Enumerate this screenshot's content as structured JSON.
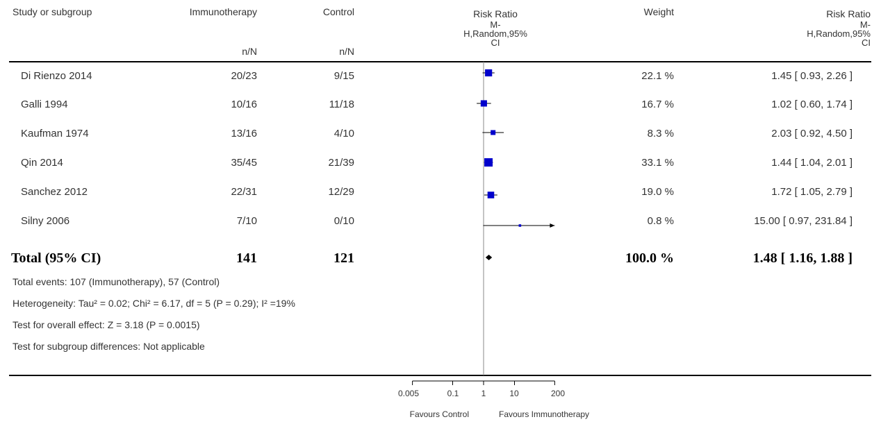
{
  "header": {
    "study": "Study or subgroup",
    "exp": "Immunotherapy",
    "ctl": "Control",
    "exp_sub": "n/N",
    "ctl_sub": "n/N",
    "rr_title": "Risk Ratio",
    "rr_l1": "M-",
    "rr_l2": "H,Random,95%",
    "rr_l3": "CI",
    "weight": "Weight",
    "rr2_title": "Risk Ratio",
    "rr2_l1": "M-",
    "rr2_l2": "H,Random,95%",
    "rr2_l3": "CI"
  },
  "rows": [
    {
      "study": "Di Rienzo 2014",
      "exp": "20/23",
      "ctl": "9/15",
      "weight": "22.1 %",
      "ci_text": "1.45 [ 0.93, 2.26 ]"
    },
    {
      "study": "Galli 1994",
      "exp": "10/16",
      "ctl": "11/18",
      "weight": "16.7 %",
      "ci_text": "1.02 [ 0.60, 1.74 ]"
    },
    {
      "study": "Kaufman 1974",
      "exp": "13/16",
      "ctl": "4/10",
      "weight": "8.3 %",
      "ci_text": "2.03 [ 0.92, 4.50 ]"
    },
    {
      "study": "Qin 2014",
      "exp": "35/45",
      "ctl": "21/39",
      "weight": "33.1 %",
      "ci_text": "1.44 [ 1.04, 2.01 ]"
    },
    {
      "study": "Sanchez 2012",
      "exp": "22/31",
      "ctl": "12/29",
      "weight": "19.0 %",
      "ci_text": "1.72 [ 1.05, 2.79 ]"
    },
    {
      "study": "Silny 2006",
      "exp": "7/10",
      "ctl": "0/10",
      "weight": "0.8 %",
      "ci_text": "15.00 [ 0.97, 231.84 ]"
    }
  ],
  "total": {
    "label": "Total (95% CI)",
    "exp": "141",
    "ctl": "121",
    "weight": "100.0 %",
    "ci_text": "1.48 [ 1.16, 1.88 ]"
  },
  "notes": [
    "Total events: 107 (Immunotherapy), 57 (Control)",
    "Heterogeneity: Tau² = 0.02; Chi² = 6.17, df = 5 (P = 0.29); I² =19%",
    "Test for overall effect: Z = 3.18 (P = 0.0015)",
    "Test for subgroup differences: Not applicable"
  ],
  "axis": {
    "ticks": [
      "0.005",
      "0.1",
      "1",
      "10",
      "200"
    ],
    "favours_left": "Favours Control",
    "favours_right": "Favours Immunotherapy"
  },
  "colors": {
    "marker": "#0000cc",
    "line": "#000000",
    "axis": "#000000",
    "ref": "#888888"
  },
  "chart_data": {
    "type": "forest",
    "scale": "log",
    "xlim": [
      0.005,
      200
    ],
    "ticks": [
      0.005,
      0.1,
      1,
      10,
      200
    ],
    "studies": [
      {
        "name": "Di Rienzo 2014",
        "rr": 1.45,
        "lo": 0.93,
        "hi": 2.26,
        "weight": 22.1
      },
      {
        "name": "Galli 1994",
        "rr": 1.02,
        "lo": 0.6,
        "hi": 1.74,
        "weight": 16.7
      },
      {
        "name": "Kaufman 1974",
        "rr": 2.03,
        "lo": 0.92,
        "hi": 4.5,
        "weight": 8.3
      },
      {
        "name": "Qin 2014",
        "rr": 1.44,
        "lo": 1.04,
        "hi": 2.01,
        "weight": 33.1
      },
      {
        "name": "Sanchez 2012",
        "rr": 1.72,
        "lo": 1.05,
        "hi": 2.79,
        "weight": 19.0
      },
      {
        "name": "Silny 2006",
        "rr": 15.0,
        "lo": 0.97,
        "hi": 231.84,
        "weight": 0.8
      }
    ],
    "pooled": {
      "rr": 1.48,
      "lo": 1.16,
      "hi": 1.88
    }
  }
}
